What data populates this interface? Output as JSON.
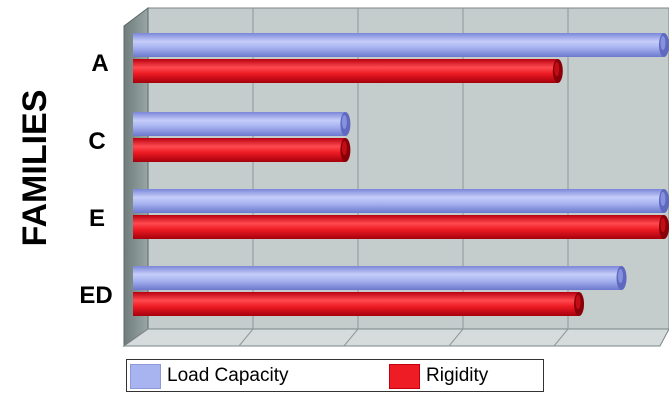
{
  "chart_data": {
    "type": "bar",
    "orientation": "horizontal",
    "ylabel": "FAMILIES",
    "xlabel": "",
    "categories": [
      "A",
      "C",
      "E",
      "ED"
    ],
    "series": [
      {
        "name": "Load Capacity",
        "values": [
          100,
          40,
          100,
          92
        ],
        "color": "#a8b4f0"
      },
      {
        "name": "Rigidity",
        "values": [
          80,
          40,
          100,
          84
        ],
        "color": "#ee1c24"
      }
    ],
    "xlim": [
      0,
      100
    ],
    "grid": true,
    "legend_position": "bottom"
  }
}
